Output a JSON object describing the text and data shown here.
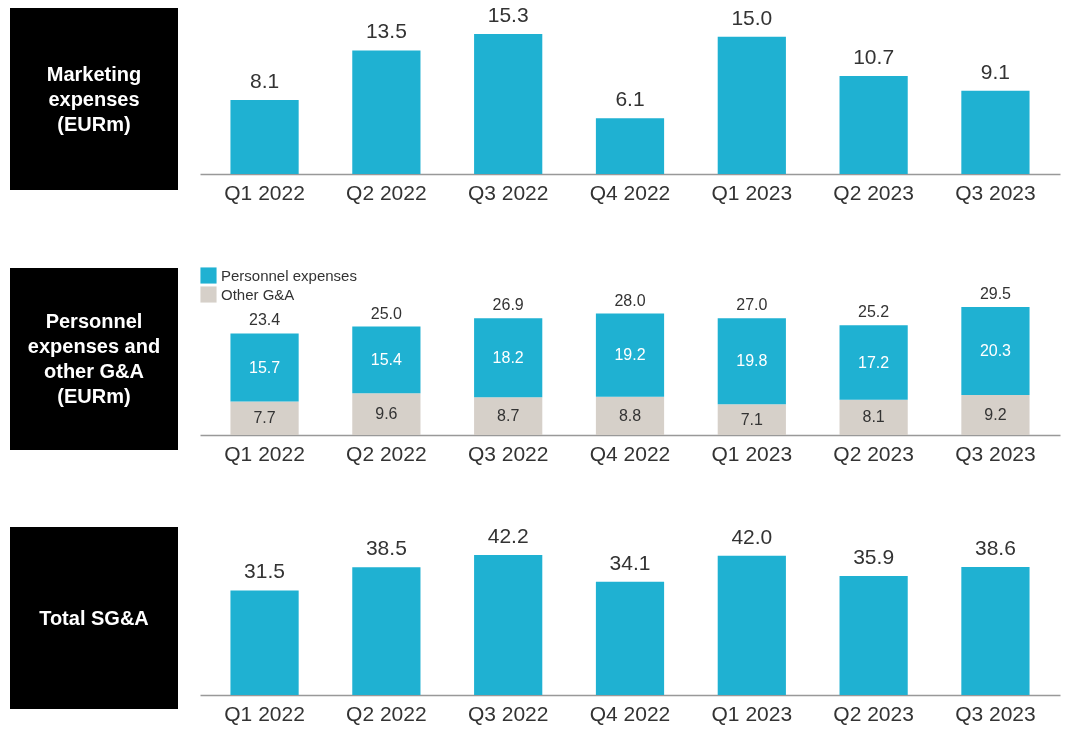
{
  "chart_data": [
    {
      "type": "bar",
      "title": "Marketing expenses (EURm)",
      "categories": [
        "Q1 2022",
        "Q2 2022",
        "Q3 2022",
        "Q4 2022",
        "Q1 2023",
        "Q2 2023",
        "Q3 2023"
      ],
      "values": [
        8.1,
        13.5,
        15.3,
        6.1,
        15.0,
        10.7,
        9.1
      ],
      "color": "#1fb1d2",
      "data_labels": true,
      "value_labels": [
        "8.1",
        "13.5",
        "15.3",
        "6.1",
        "15.0",
        "10.7",
        "9.1"
      ]
    },
    {
      "type": "bar",
      "title": "Personnel expenses and other G&A (EURm)",
      "categories": [
        "Q1 2022",
        "Q2 2022",
        "Q3 2022",
        "Q4 2022",
        "Q1 2023",
        "Q2 2023",
        "Q3 2023"
      ],
      "stacked": true,
      "legend": "top left",
      "data_labels": true,
      "series": [
        {
          "name": "Other G&A",
          "color": "#d6d0c9",
          "values": [
            7.7,
            9.6,
            8.7,
            8.8,
            7.1,
            8.1,
            9.2
          ]
        },
        {
          "name": "Personnel expenses",
          "color": "#1fb1d2",
          "values": [
            15.7,
            15.4,
            18.2,
            19.2,
            19.8,
            17.2,
            20.3
          ]
        }
      ],
      "totals": [
        "23.4",
        "25.0",
        "26.9",
        "28.0",
        "27.0",
        "25.2",
        "29.5"
      ]
    },
    {
      "type": "bar",
      "title": "Total SG&A",
      "categories": [
        "Q1 2022",
        "Q2 2022",
        "Q3 2022",
        "Q4 2022",
        "Q1 2023",
        "Q2 2023",
        "Q3 2023"
      ],
      "values": [
        31.5,
        38.5,
        42.2,
        34.1,
        42.0,
        35.9,
        38.6
      ],
      "color": "#1fb1d2",
      "data_labels": true,
      "value_labels": [
        "31.5",
        "38.5",
        "42.2",
        "34.1",
        "42.0",
        "35.9",
        "38.6"
      ]
    }
  ]
}
